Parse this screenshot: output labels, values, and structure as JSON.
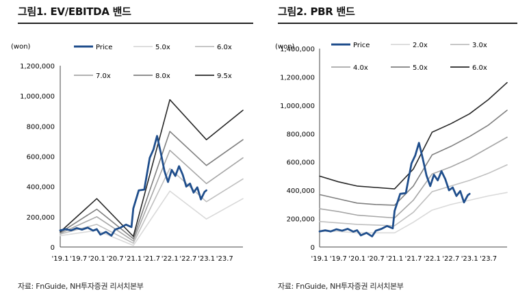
{
  "chart_data": [
    {
      "type": "line",
      "title": "그림1. EV/EBITDA 밴드",
      "unit_label": "(won)",
      "source": "자료: FnGuide, NH투자증권 리서치본부",
      "categories": [
        "'19.1",
        "'19.7",
        "'20.1",
        "'20.7",
        "'21.1",
        "'21.7",
        "'22.1",
        "'22.7",
        "'23.1",
        "'23.7"
      ],
      "ylim": [
        0,
        1200000
      ],
      "yticks": [
        "0",
        "200,000",
        "400,000",
        "600,000",
        "800,000",
        "1,000,000",
        "1,200,000"
      ],
      "series": [
        {
          "name": "Price",
          "color": "#1f4e8c",
          "x": [
            0,
            0.3,
            0.6,
            0.9,
            1.2,
            1.5,
            1.8,
            2.0,
            2.2,
            2.5,
            2.8,
            3.0,
            3.3,
            3.6,
            3.9,
            4.0,
            4.3,
            4.6,
            4.9,
            5.1,
            5.3,
            5.5,
            5.7,
            5.9,
            6.1,
            6.3,
            6.5,
            6.7,
            6.9,
            7.1,
            7.3,
            7.5,
            7.7,
            7.9,
            8.0
          ],
          "values": [
            110000,
            118000,
            110000,
            125000,
            115000,
            128000,
            108000,
            118000,
            82000,
            100000,
            75000,
            115000,
            128000,
            148000,
            132000,
            255000,
            375000,
            380000,
            590000,
            645000,
            735000,
            625000,
            505000,
            430000,
            510000,
            470000,
            535000,
            480000,
            400000,
            420000,
            360000,
            395000,
            315000,
            365000,
            375000
          ]
        },
        {
          "name": "5.0x",
          "color": "#d9d9d9",
          "x": [
            0,
            2,
            4,
            6,
            8,
            10
          ],
          "values": [
            75000,
            110000,
            10000,
            370000,
            185000,
            320000
          ]
        },
        {
          "name": "6.0x",
          "color": "#bfbfbf",
          "x": [
            0,
            2,
            4,
            6,
            8,
            10
          ],
          "values": [
            85000,
            150000,
            25000,
            520000,
            300000,
            450000
          ]
        },
        {
          "name": "7.0x",
          "color": "#a6a6a6",
          "x": [
            0,
            2,
            4,
            6,
            8,
            10
          ],
          "values": [
            90000,
            200000,
            40000,
            640000,
            420000,
            590000
          ]
        },
        {
          "name": "8.0x",
          "color": "#7f7f7f",
          "x": [
            0,
            2,
            4,
            6,
            8,
            10
          ],
          "values": [
            95000,
            250000,
            55000,
            765000,
            540000,
            710000
          ]
        },
        {
          "name": "9.5x",
          "color": "#262626",
          "x": [
            0,
            2,
            4,
            6,
            8,
            10
          ],
          "values": [
            100000,
            320000,
            70000,
            975000,
            710000,
            905000
          ]
        }
      ]
    },
    {
      "type": "line",
      "title": "그림2. PBR 밴드",
      "unit_label": "(won)",
      "source": "자료: FnGuide, NH투자증권 리서치본부",
      "categories": [
        "'19.1",
        "'19.7",
        "'20.1",
        "'20.7",
        "'21.1",
        "'21.7",
        "'22.1",
        "'22.7",
        "'23.1",
        "'23.7"
      ],
      "ylim": [
        0,
        1400000
      ],
      "yticks": [
        "0",
        "200,000",
        "400,000",
        "600,000",
        "800,000",
        "1,000,000",
        "1,200,000",
        "1,400,000"
      ],
      "series": [
        {
          "name": "Price",
          "color": "#1f4e8c",
          "x": [
            0,
            0.3,
            0.6,
            0.9,
            1.2,
            1.5,
            1.8,
            2.0,
            2.2,
            2.5,
            2.8,
            3.0,
            3.3,
            3.6,
            3.9,
            4.0,
            4.3,
            4.6,
            4.9,
            5.1,
            5.3,
            5.5,
            5.7,
            5.9,
            6.1,
            6.3,
            6.5,
            6.7,
            6.9,
            7.1,
            7.3,
            7.5,
            7.7,
            7.9,
            8.0
          ],
          "values": [
            110000,
            118000,
            110000,
            125000,
            115000,
            128000,
            108000,
            118000,
            82000,
            100000,
            75000,
            115000,
            128000,
            148000,
            132000,
            255000,
            375000,
            380000,
            590000,
            645000,
            735000,
            625000,
            505000,
            430000,
            510000,
            470000,
            535000,
            480000,
            400000,
            420000,
            360000,
            395000,
            315000,
            365000,
            375000
          ]
        },
        {
          "name": "2.0x",
          "color": "#d9d9d9",
          "x": [
            0,
            1,
            2,
            3,
            4,
            5,
            6,
            7,
            8,
            9,
            10
          ],
          "values": [
            110000,
            110000,
            100000,
            100000,
            100000,
            175000,
            260000,
            300000,
            330000,
            360000,
            385000
          ]
        },
        {
          "name": "3.0x",
          "color": "#bfbfbf",
          "x": [
            0,
            1,
            2,
            3,
            4,
            5,
            6,
            7,
            8,
            9,
            10
          ],
          "values": [
            180000,
            170000,
            160000,
            155000,
            150000,
            245000,
            390000,
            430000,
            470000,
            520000,
            580000
          ]
        },
        {
          "name": "4.0x",
          "color": "#a6a6a6",
          "x": [
            0,
            1,
            2,
            3,
            4,
            5,
            6,
            7,
            8,
            9,
            10
          ],
          "values": [
            270000,
            250000,
            225000,
            215000,
            205000,
            330000,
            515000,
            565000,
            625000,
            700000,
            775000
          ]
        },
        {
          "name": "5.0x",
          "color": "#7f7f7f",
          "x": [
            0,
            1,
            2,
            3,
            4,
            5,
            6,
            7,
            8,
            9,
            10
          ],
          "values": [
            370000,
            340000,
            310000,
            300000,
            295000,
            430000,
            650000,
            710000,
            780000,
            860000,
            965000
          ]
        },
        {
          "name": "6.0x",
          "color": "#262626",
          "x": [
            0,
            1,
            2,
            3,
            4,
            5,
            6,
            7,
            8,
            9,
            10
          ],
          "values": [
            500000,
            460000,
            430000,
            420000,
            410000,
            550000,
            810000,
            870000,
            940000,
            1040000,
            1160000
          ]
        }
      ]
    }
  ]
}
